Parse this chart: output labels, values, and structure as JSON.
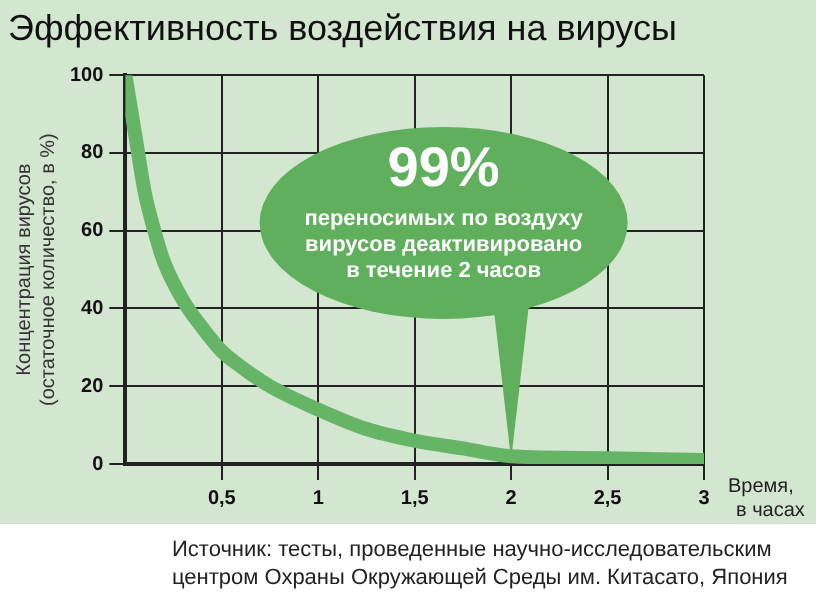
{
  "chart_data": {
    "type": "line",
    "title": "Эффективность воздействия на вирусы",
    "ylabel": "Концентрация вирусов\n(остаточное количество, в %)",
    "xlabel": "Время,\nв часах",
    "x": [
      0,
      0.05,
      0.1,
      0.15,
      0.2,
      0.3,
      0.4,
      0.5,
      0.6,
      0.75,
      1,
      1.25,
      1.5,
      1.75,
      2,
      2.5,
      3
    ],
    "series": [
      {
        "color": "#66b466",
        "values": [
          100,
          85,
          70,
          60,
          52,
          42,
          35,
          29,
          25,
          20,
          14,
          9,
          6,
          4,
          2,
          1.5,
          1
        ]
      }
    ],
    "xlim": [
      0,
      3
    ],
    "xticks": [
      {
        "value": 0.5,
        "label": "0,5"
      },
      1,
      {
        "value": 1.5,
        "label": "1,5"
      },
      2,
      {
        "value": 2.5,
        "label": "2,5"
      },
      3
    ],
    "ylim": [
      0,
      100
    ],
    "yticks": [
      0,
      20,
      40,
      60,
      80,
      100
    ],
    "grid": true,
    "legend": false,
    "marker": "none",
    "line_style": "solid",
    "annotations": [
      {
        "text": "99%\nпереносимых по воздуху\nвирусов деактивировано\nв течение 2 часов",
        "x": 2,
        "y": 1
      },
      "Источник: тесты, проведенные научно-исследовательским\nцентром Охраны Окружающей Среды им. Китасато, Япония"
    ]
  }
}
